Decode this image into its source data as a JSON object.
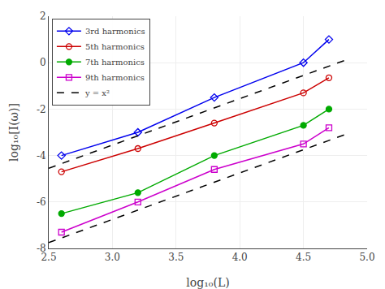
{
  "chart_data": {
    "type": "line",
    "x": [
      2.6,
      3.2,
      3.8,
      4.5,
      4.7
    ],
    "series": [
      {
        "name": "3rd harmonics",
        "color": "#0000EE",
        "marker": "diamond-open",
        "line_style": "solid",
        "values": [
          -4.0,
          -3.0,
          -1.5,
          0.0,
          1.0
        ]
      },
      {
        "name": "5th harmonics",
        "color": "#CC0000",
        "marker": "circle-open",
        "line_style": "solid",
        "values": [
          -4.7,
          -3.7,
          -2.6,
          -1.3,
          -0.65
        ]
      },
      {
        "name": "7th harmonics",
        "color": "#00AA00",
        "marker": "circle",
        "line_style": "solid",
        "values": [
          -6.5,
          -5.6,
          -4.0,
          -2.7,
          -2.0
        ]
      },
      {
        "name": "9th harmonics",
        "color": "#CC00CC",
        "marker": "square-open",
        "line_style": "solid",
        "values": [
          -7.3,
          -6.0,
          -4.6,
          -3.5,
          -2.8
        ]
      },
      {
        "name": "y = x²",
        "color": "#000000",
        "line_style": "dashed",
        "x": [
          2.5,
          4.85,
          null,
          2.5,
          4.85
        ],
        "values": [
          -4.55,
          0.15,
          null,
          -7.75,
          -3.05
        ]
      }
    ],
    "xlabel": "log₁₀(L)",
    "ylabel": "log₁₀[I(ω)]",
    "xlim": [
      2.5,
      5.0
    ],
    "ylim": [
      -8,
      2
    ],
    "xticks": [
      2.5,
      {
        "value": 3.0,
        "label": "3.0"
      },
      3.5,
      {
        "value": 4.0,
        "label": "4.0"
      },
      4.5,
      {
        "value": 5.0,
        "label": "5.0"
      }
    ],
    "yticks": [
      -8,
      -6,
      -4,
      -2,
      0,
      2
    ],
    "grid": true,
    "legend": "upper left"
  }
}
